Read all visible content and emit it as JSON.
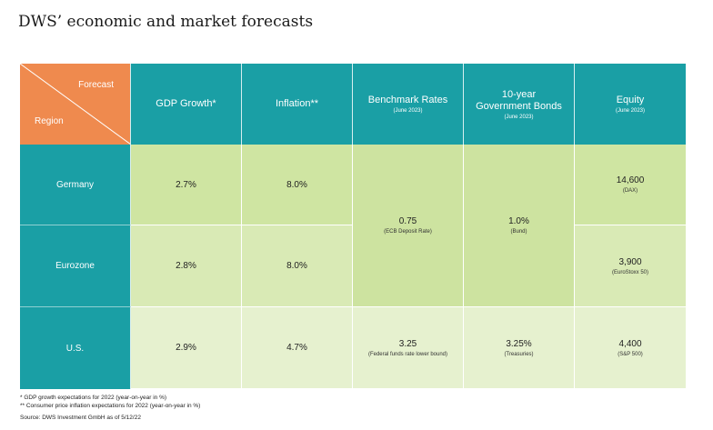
{
  "title": "DWS’ economic and market forecasts",
  "corner": {
    "forecast": "Forecast",
    "region": "Region"
  },
  "headers": [
    {
      "label": "GDP Growth*",
      "sub": ""
    },
    {
      "label": "Inflation**",
      "sub": ""
    },
    {
      "label": "Benchmark Rates",
      "sub": "(June 2023)"
    },
    {
      "label": "10-year Government Bonds",
      "sub": "(June 2023)"
    },
    {
      "label": "Equity",
      "sub": "(June 2023)"
    }
  ],
  "rows": [
    {
      "region": "Germany",
      "gdp": "2.7%",
      "inflation": "8.0%",
      "equity": "14,600",
      "equity_note": "(DAX)"
    },
    {
      "region": "Eurozone",
      "gdp": "2.8%",
      "inflation": "8.0%",
      "equity": "3,900",
      "equity_note": "(EuroStoxx 50)"
    },
    {
      "region": "U.S.",
      "gdp": "2.9%",
      "inflation": "4.7%",
      "equity": "4,400",
      "equity_note": "(S&P 500)",
      "rate": "3.25",
      "rate_note": "(Federal funds rate lower bound)",
      "bond": "3.25%",
      "bond_note": "(Treasuries)"
    }
  ],
  "merged": {
    "rate": "0.75",
    "rate_note": "(ECB Deposit Rate)",
    "bond": "1.0%",
    "bond_note": "(Bund)"
  },
  "notes": [
    "* GDP growth expectations for 2022 (year-on-year in %)",
    "** Consumer price inflation expectations for 2022 (year-on-year in %)"
  ],
  "source": "Source: DWS Investment GmbH as of 5/12/22",
  "colors": {
    "teal": "#1a9fa5",
    "orange": "#ef8a4e",
    "green_dark": "#cfe5a2",
    "green_light": "#e6f1cf"
  }
}
